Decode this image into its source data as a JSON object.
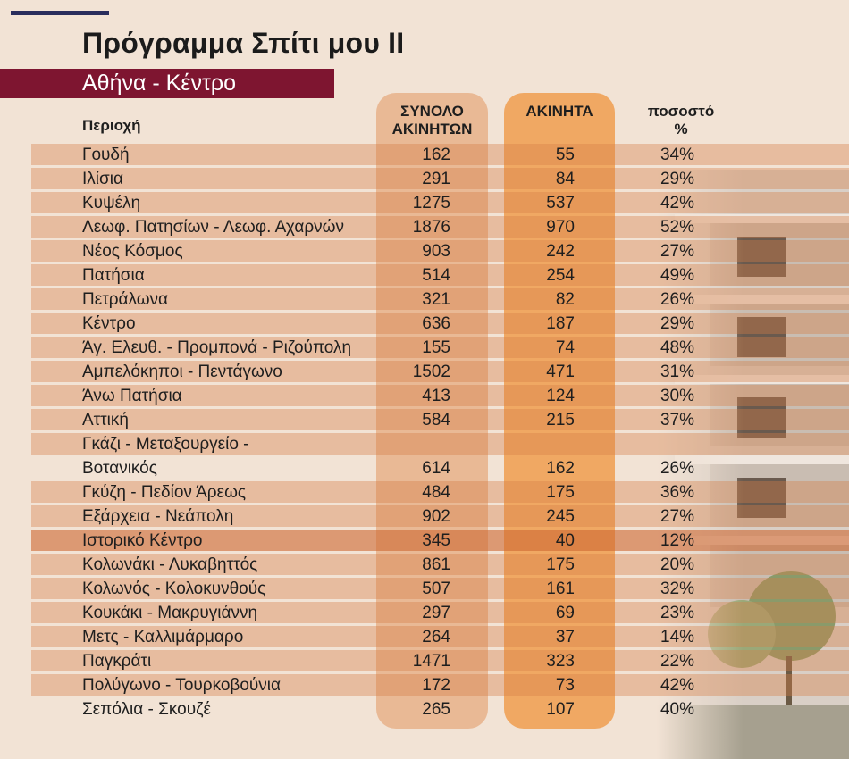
{
  "title": "Πρόγραμμα Σπίτι μου ΙΙ",
  "subtitle": "Αθήνα - Κέντρο",
  "colors": {
    "accent_bar": "#2a2d5c",
    "subtitle_bg": "#7e1530",
    "col_total": "#e8b28a",
    "col_vacant": "#f0a863",
    "page_bg": "#f2e3d5"
  },
  "chart_data": {
    "type": "table",
    "columns": [
      "Περιοχή",
      "ΣΥΝΟΛΟ ΑΚΙΝΗΤΩΝ",
      "ΑΚΙΝΗΤΑ",
      "ποσοστό %"
    ],
    "header": {
      "area": "Περιοχή",
      "total_line1": "ΣΥΝΟΛΟ",
      "total_line2": "ΑΚΙΝΗΤΩΝ",
      "vacant": "ΑΚΙΝΗΤΑ",
      "pct_line1": "ποσοστό",
      "pct_line2": "%"
    },
    "rows": [
      {
        "area": "Γουδή",
        "total": "162",
        "vacant": "55",
        "pct": "34%"
      },
      {
        "area": "Ιλίσια",
        "total": "291",
        "vacant": "84",
        "pct": "29%"
      },
      {
        "area": "Κυψέλη",
        "total": "1275",
        "vacant": "537",
        "pct": "42%"
      },
      {
        "area": "Λεωφ. Πατησίων - Λεωφ. Αχαρνών",
        "total": "1876",
        "vacant": "970",
        "pct": "52%"
      },
      {
        "area": "Νέος Κόσμος",
        "total": "903",
        "vacant": "242",
        "pct": "27%"
      },
      {
        "area": "Πατήσια",
        "total": "514",
        "vacant": "254",
        "pct": "49%"
      },
      {
        "area": "Πετράλωνα",
        "total": "321",
        "vacant": "82",
        "pct": "26%"
      },
      {
        "area": "Κέντρο",
        "total": "636",
        "vacant": "187",
        "pct": "29%"
      },
      {
        "area": "Άγ. Ελευθ. - Προμπονά - Ριζούπολη",
        "total": "155",
        "vacant": "74",
        "pct": "48%"
      },
      {
        "area": "Αμπελόκηποι - Πεντάγωνο",
        "total": "1502",
        "vacant": "471",
        "pct": "31%"
      },
      {
        "area": "Άνω Πατήσια",
        "total": "413",
        "vacant": "124",
        "pct": "30%"
      },
      {
        "area": "Αττική",
        "total": "584",
        "vacant": "215",
        "pct": "37%"
      },
      {
        "area": "Γκάζι - Μεταξουργείο -",
        "total": "",
        "vacant": "",
        "pct": "",
        "plain": false
      },
      {
        "area": "Βοτανικός",
        "total": "614",
        "vacant": "162",
        "pct": "26%",
        "plain": true
      },
      {
        "area": "Γκύζη - Πεδίον Άρεως",
        "total": "484",
        "vacant": "175",
        "pct": "36%"
      },
      {
        "area": "Εξάρχεια - Νεάπολη",
        "total": "902",
        "vacant": "245",
        "pct": "27%"
      },
      {
        "area": "Ιστορικό Κέντρο",
        "total": "345",
        "vacant": "40",
        "pct": "12%",
        "highlight": true
      },
      {
        "area": "Κολωνάκι - Λυκαβηττός",
        "total": "861",
        "vacant": "175",
        "pct": "20%"
      },
      {
        "area": "Κολωνός - Κολοκυνθούς",
        "total": "507",
        "vacant": "161",
        "pct": "32%"
      },
      {
        "area": "Κουκάκι - Μακρυγιάννη",
        "total": "297",
        "vacant": "69",
        "pct": "23%"
      },
      {
        "area": "Μετς - Καλλιμάρμαρο",
        "total": "264",
        "vacant": "37",
        "pct": "14%"
      },
      {
        "area": "Παγκράτι",
        "total": "1471",
        "vacant": "323",
        "pct": "22%"
      },
      {
        "area": "Πολύγωνο - Τουρκοβούνια",
        "total": "172",
        "vacant": "73",
        "pct": "42%"
      },
      {
        "area": "Σεπόλια - Σκουζέ",
        "total": "265",
        "vacant": "107",
        "pct": "40%",
        "plain": true
      }
    ]
  }
}
